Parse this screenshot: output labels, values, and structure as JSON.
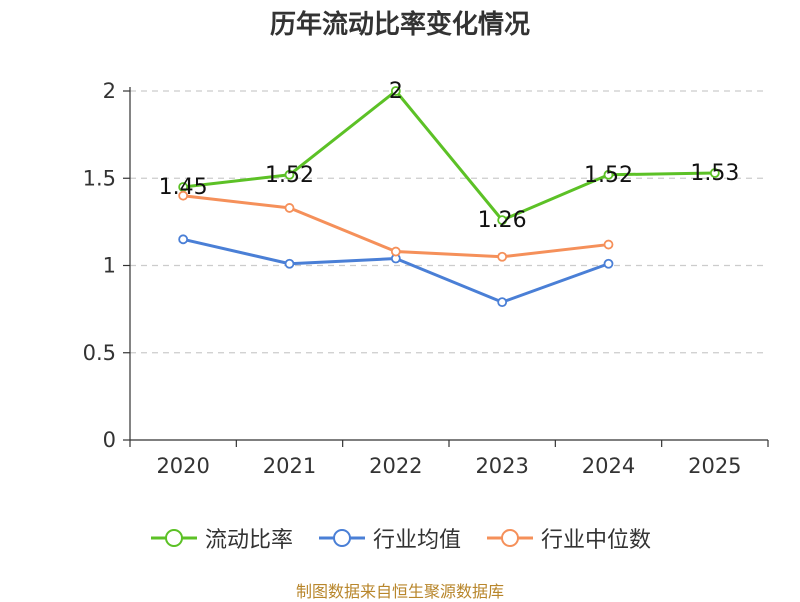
{
  "chart_data": {
    "type": "line",
    "title": "历年流动比率变化情况",
    "categories": [
      "2020",
      "2021",
      "2022",
      "2023",
      "2024",
      "2025"
    ],
    "ylim": [
      0,
      2
    ],
    "yticks": [
      0,
      0.5,
      1,
      1.5,
      2
    ],
    "ytick_labels": [
      "0",
      "0.5",
      "1",
      "1.5",
      "2"
    ],
    "grid": true,
    "legend_position": "bottom",
    "series": [
      {
        "name": "流动比率",
        "color": "#5cc126",
        "values": [
          1.45,
          1.52,
          2,
          1.26,
          1.52,
          1.53
        ],
        "labels": [
          "1.45",
          "1.52",
          "2",
          "1.26",
          "1.52",
          "1.53"
        ]
      },
      {
        "name": "行业均值",
        "color": "#4a7fd6",
        "values": [
          1.15,
          1.01,
          1.04,
          0.79,
          1.01,
          null
        ]
      },
      {
        "name": "行业中位数",
        "color": "#f5905a",
        "values": [
          1.4,
          1.33,
          1.08,
          1.05,
          1.12,
          null
        ]
      }
    ]
  },
  "source_note": "制图数据来自恒生聚源数据库"
}
